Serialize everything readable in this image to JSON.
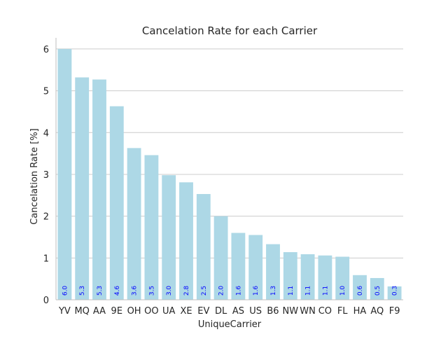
{
  "chart_data": {
    "type": "bar",
    "title": "Cancelation Rate for each Carrier",
    "xlabel": "UniqueCarrier",
    "ylabel": "Cancelation Rate [%]",
    "ylim": [
      0,
      6.2
    ],
    "yticks": [
      0,
      1,
      2,
      3,
      4,
      5,
      6
    ],
    "grid": "horizontal",
    "bar_color": "#add8e6",
    "label_color": "#0000ff",
    "categories": [
      "YV",
      "MQ",
      "AA",
      "9E",
      "OH",
      "OO",
      "UA",
      "XE",
      "EV",
      "DL",
      "AS",
      "US",
      "B6",
      "NW",
      "WN",
      "CO",
      "FL",
      "HA",
      "AQ",
      "F9"
    ],
    "values": [
      6.0,
      5.32,
      5.27,
      4.63,
      3.63,
      3.46,
      2.98,
      2.81,
      2.53,
      2.0,
      1.6,
      1.55,
      1.33,
      1.14,
      1.09,
      1.06,
      1.03,
      0.59,
      0.52,
      0.32
    ],
    "data_labels": [
      "6.0",
      "5.3",
      "5.3",
      "4.6",
      "3.6",
      "3.5",
      "3.0",
      "2.8",
      "2.5",
      "2.0",
      "1.6",
      "1.6",
      "1.3",
      "1.1",
      "1.1",
      "1.1",
      "1.0",
      "0.6",
      "0.5",
      "0.3"
    ]
  }
}
